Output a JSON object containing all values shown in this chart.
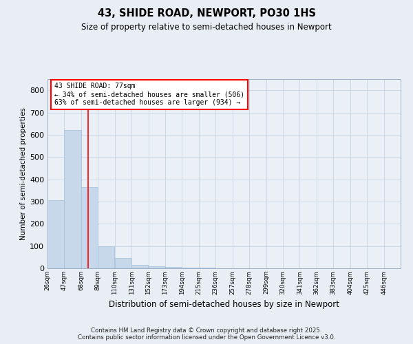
{
  "title": "43, SHIDE ROAD, NEWPORT, PO30 1HS",
  "subtitle": "Size of property relative to semi-detached houses in Newport",
  "xlabel": "Distribution of semi-detached houses by size in Newport",
  "ylabel": "Number of semi-detached properties",
  "bar_color": "#c8d8eb",
  "bar_edge_color": "#aac4dc",
  "vline_color": "red",
  "vline_x": 77,
  "annotation_text": "43 SHIDE ROAD: 77sqm\n← 34% of semi-detached houses are smaller (506)\n63% of semi-detached houses are larger (934) →",
  "bins": [
    26,
    47,
    68,
    89,
    110,
    131,
    152,
    173,
    194,
    215,
    236,
    257,
    278,
    299,
    320,
    341,
    362,
    383,
    404,
    425,
    446
  ],
  "counts": [
    305,
    620,
    365,
    100,
    45,
    15,
    8,
    5,
    3,
    2,
    1,
    1,
    1,
    0,
    1,
    0,
    0,
    0,
    0,
    0
  ],
  "ylim": [
    0,
    850
  ],
  "yticks": [
    0,
    100,
    200,
    300,
    400,
    500,
    600,
    700,
    800
  ],
  "footer_text": "Contains HM Land Registry data © Crown copyright and database right 2025.\nContains public sector information licensed under the Open Government Licence v3.0.",
  "background_color": "#e8eef4",
  "plot_bg_color": "#eaf0f6",
  "grid_color": "#c5d5e5"
}
